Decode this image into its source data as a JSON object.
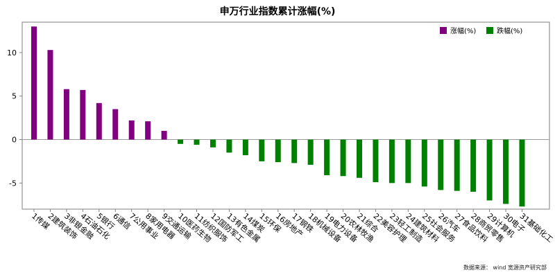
{
  "title": "申万行业指数累计涨幅(%)",
  "source": "数据来源： wind 宽源资产研究部",
  "colors": {
    "up": "#800080",
    "down": "#008000",
    "axis": "#7f7f7f",
    "zero": "#9a9a9a"
  },
  "chart_data": {
    "type": "bar",
    "title": "申万行业指数累计涨幅(%)",
    "xlabel": "",
    "ylabel": "",
    "ylim": [
      -8,
      13.5
    ],
    "yticks": [
      -5,
      0,
      5,
      10
    ],
    "grid": false,
    "legend_position": "top-right",
    "legend": [
      {
        "label": "涨幅(%)",
        "color": "#800080"
      },
      {
        "label": "跌幅(%)",
        "color": "#008000"
      }
    ],
    "categories": [
      "1传媒",
      "2建筑装饰",
      "3非银金融",
      "4石油石化",
      "5银行",
      "6通信",
      "7公用事业",
      "8家用电器",
      "9交通运输",
      "10医药生物",
      "11纺织服饰",
      "12国防军工",
      "13有色金属",
      "14煤炭",
      "15环保",
      "16房地产",
      "17钢铁",
      "18机械设备",
      "19电力设备",
      "20农林牧渔",
      "21综合",
      "22美容护理",
      "23轻工制造",
      "24建筑材料",
      "25社会服务",
      "26汽车",
      "27食品饮料",
      "28商贸零售",
      "29计算机",
      "30电子",
      "31基础化工"
    ],
    "values": [
      13.0,
      10.3,
      5.8,
      5.7,
      4.2,
      3.5,
      2.2,
      2.1,
      1.0,
      -0.5,
      -0.6,
      -0.9,
      -1.5,
      -1.8,
      -2.5,
      -2.6,
      -2.7,
      -2.9,
      -4.1,
      -4.2,
      -4.4,
      -4.9,
      -5.0,
      -5.0,
      -5.4,
      -5.8,
      -5.9,
      -6.0,
      -7.0,
      -7.4,
      -7.7
    ]
  }
}
